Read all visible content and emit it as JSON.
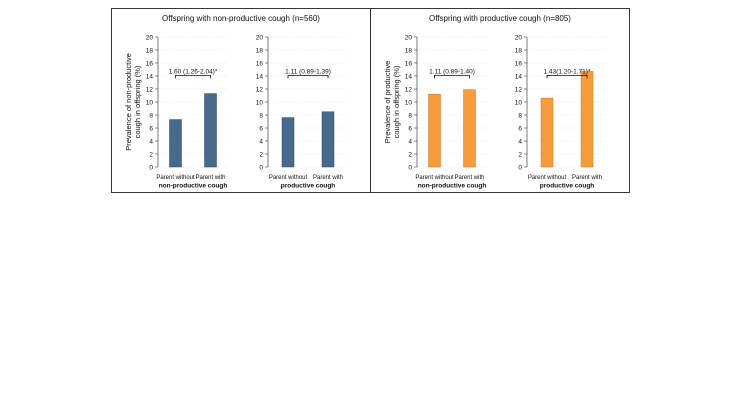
{
  "figure": {
    "panels": [
      {
        "title": "Offspring with non-productive cough (n=560)",
        "ylabel_line1": "Prevalence of non-productive",
        "ylabel_line2": "cough in offspring (%)",
        "bar_color": "#476a8c",
        "bar_edge": "#2c4a66"
      },
      {
        "title": "Offspring with productive cough (n=805)",
        "ylabel_line1": "Prevalence of productive",
        "ylabel_line2": "cough in offspring (%)",
        "bar_color": "#f79c3c",
        "bar_edge": "#d07a1e"
      }
    ]
  },
  "chart_data": [
    {
      "type": "bar",
      "panel": 0,
      "title": "Offspring with non-productive cough (n=560)",
      "xlabel": "non-productive cough",
      "ylabel": "Prevalence of non-productive cough in offspring (%)",
      "categories": [
        "Parent without",
        "Parent with"
      ],
      "values": [
        7.3,
        11.3
      ],
      "annotation": "1.60 (1.26-2.04)*",
      "ylim": [
        0,
        20
      ],
      "yticks": [
        0,
        2,
        4,
        6,
        8,
        10,
        12,
        14,
        16,
        18,
        20
      ],
      "grid": true
    },
    {
      "type": "bar",
      "panel": 0,
      "title": "Offspring with non-productive cough (n=560)",
      "xlabel": "productive cough",
      "ylabel": "Prevalence of non-productive cough in offspring (%)",
      "categories": [
        "Parent without",
        "Parent with"
      ],
      "values": [
        7.6,
        8.5
      ],
      "annotation": "1.11 (0.89-1.39)",
      "ylim": [
        0,
        20
      ],
      "yticks": [
        0,
        2,
        4,
        6,
        8,
        10,
        12,
        14,
        16,
        18,
        20
      ],
      "grid": true
    },
    {
      "type": "bar",
      "panel": 1,
      "title": "Offspring with productive cough (n=805)",
      "xlabel": "non-productive cough",
      "ylabel": "Prevalence of productive cough in offspring (%)",
      "categories": [
        "Parent without",
        "Parent with"
      ],
      "values": [
        11.2,
        11.9
      ],
      "annotation": "1.11 (0.89-1.40)",
      "ylim": [
        0,
        20
      ],
      "yticks": [
        0,
        2,
        4,
        6,
        8,
        10,
        12,
        14,
        16,
        18,
        20
      ],
      "grid": true
    },
    {
      "type": "bar",
      "panel": 1,
      "title": "Offspring with productive cough (n=805)",
      "xlabel": "productive cough",
      "ylabel": "Prevalence of productive cough in offspring (%)",
      "categories": [
        "Parent without",
        "Parent with"
      ],
      "values": [
        10.6,
        14.7
      ],
      "annotation": "1.43(1.20-1.71)*",
      "ylim": [
        0,
        20
      ],
      "yticks": [
        0,
        2,
        4,
        6,
        8,
        10,
        12,
        14,
        16,
        18,
        20
      ],
      "grid": true
    }
  ]
}
